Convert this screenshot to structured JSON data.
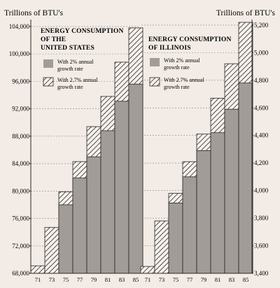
{
  "chart_data": [
    {
      "type": "bar",
      "title": [
        "ENERGY CONSUMPTION",
        "OF THE",
        "UNITED STATES"
      ],
      "ylabel": "Trillions of BTU's",
      "xlabel": "",
      "categories": [
        "71",
        "73",
        "75",
        "77",
        "79",
        "81",
        "83",
        "85"
      ],
      "series": [
        {
          "name": [
            "With 2% annual",
            "growth rate"
          ],
          "values": [
            null,
            null,
            78000,
            81900,
            85000,
            88800,
            93100,
            95600
          ],
          "fill": "#a29c98"
        },
        {
          "name": [
            "With 2.7% annual",
            "growth rate"
          ],
          "values": [
            69100,
            74700,
            79900,
            84300,
            89400,
            93800,
            98800,
            103800
          ],
          "fill": "hatch"
        }
      ],
      "yticks": [
        "68,000",
        "72,000",
        "76,000",
        "80,000",
        "84,000",
        "88,000",
        "92,000",
        "96,000",
        "100,000",
        "104,000"
      ],
      "ylim": [
        68000,
        104500
      ],
      "ytick_side": "left",
      "legend_position": "top-left"
    },
    {
      "type": "bar",
      "title": [
        "ENERGY CONSUMPTION",
        "OF ILLINOIS"
      ],
      "ylabel": "Trillions of BTU's",
      "xlabel": "",
      "categories": [
        "71",
        "73",
        "75",
        "77",
        "79",
        "81",
        "83",
        "85"
      ],
      "series": [
        {
          "name": [
            "With 2% annual",
            "growth rate"
          ],
          "values": [
            null,
            null,
            3910,
            4100,
            4290,
            4420,
            4590,
            4780
          ],
          "fill": "#a29c98"
        },
        {
          "name": [
            "With 2.7% annual",
            "growth rate"
          ],
          "values": [
            3450,
            3780,
            3980,
            4210,
            4410,
            4670,
            4920,
            5220
          ],
          "fill": "hatch"
        }
      ],
      "yticks": [
        "3,400",
        "3,600",
        "3,800",
        "4,000",
        "4,200",
        "4,400",
        "4,600",
        "4,800",
        "5,000",
        "5,200"
      ],
      "ylim": [
        3400,
        5230
      ],
      "ytick_side": "right",
      "legend_position": "top-left"
    }
  ]
}
